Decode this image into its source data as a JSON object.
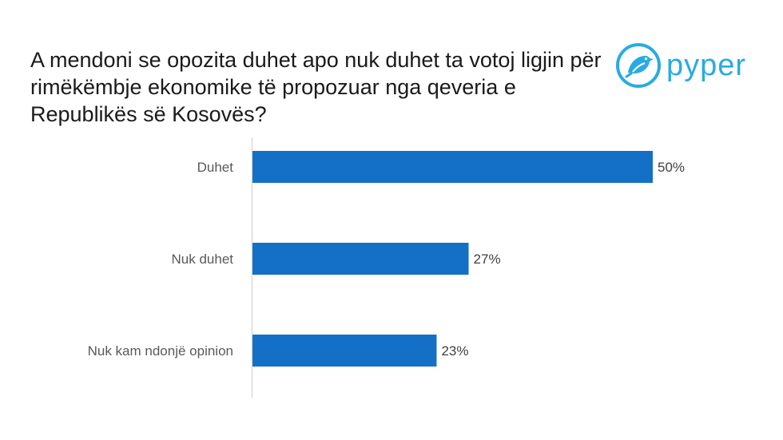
{
  "brand": {
    "name": "pyper",
    "color": "#29abe2"
  },
  "chart_data": {
    "type": "bar",
    "orientation": "horizontal",
    "title": "A mendoni se opozita duhet apo nuk duhet ta votoj ligjin për rimëkëmbje ekonomike të propozuar nga qeveria e Republikës së Kosovës?",
    "categories": [
      "Duhet",
      "Nuk duhet",
      "Nuk kam ndonjë opinion"
    ],
    "values": [
      50,
      27,
      23
    ],
    "value_labels": [
      "50%",
      "27%",
      "23%"
    ],
    "unit": "%",
    "xlim": [
      0,
      50
    ],
    "bar_color": "#1470c6",
    "axis_color": "#d9d9d9",
    "grid": false,
    "legend": "none",
    "xlabel": "",
    "ylabel": ""
  }
}
